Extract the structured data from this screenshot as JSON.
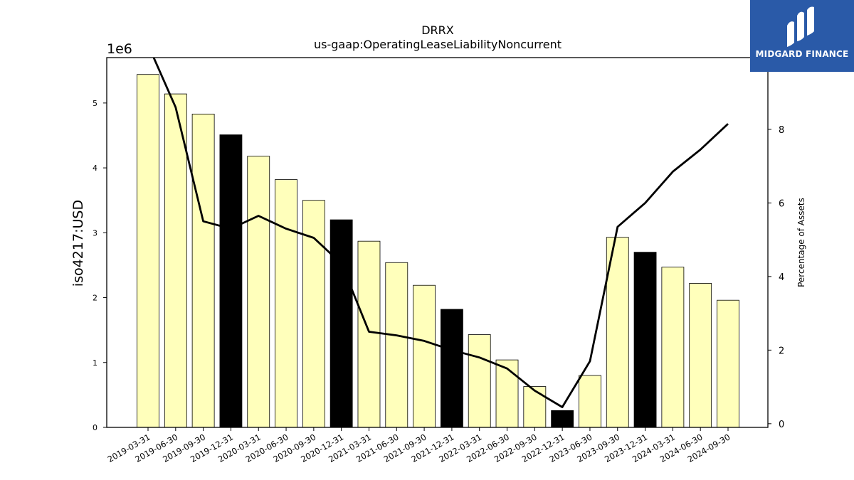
{
  "chart_data": {
    "type": "bar",
    "title": "DRRX",
    "subtitle": "us-gaap:OperatingLeaseLiabilityNoncurrent",
    "ylabel": "iso4217:USD",
    "y2label": "Percentage of Assets",
    "y_offset_label": "1e6",
    "ylim": [
      0,
      5700000
    ],
    "y2lim": [
      -0.1,
      9.95
    ],
    "yticks": [
      "0",
      "1",
      "2",
      "3",
      "4",
      "5"
    ],
    "y2ticks": [
      "0",
      "2",
      "4",
      "6",
      "8"
    ],
    "categories": [
      "2019-03-31",
      "2019-06-30",
      "2019-09-30",
      "2019-12-31",
      "2020-03-31",
      "2020-06-30",
      "2020-09-30",
      "2020-12-31",
      "2021-03-31",
      "2021-06-30",
      "2021-09-30",
      "2021-12-31",
      "2022-03-31",
      "2022-06-30",
      "2022-09-30",
      "2022-12-31",
      "2023-06-30",
      "2023-09-30",
      "2023-12-31",
      "2024-03-31",
      "2024-06-30",
      "2024-09-30"
    ],
    "series": [
      {
        "kind": "bar",
        "axis": "left",
        "values": [
          5440000,
          5140000,
          4830000,
          4510000,
          4180000,
          3820000,
          3500000,
          3200000,
          2870000,
          2540000,
          2190000,
          1820000,
          1430000,
          1040000,
          630000,
          260000,
          800000,
          2930000,
          2700000,
          2470000,
          2220000,
          1960000
        ],
        "highlight": [
          false,
          false,
          false,
          true,
          false,
          false,
          false,
          true,
          false,
          false,
          false,
          true,
          false,
          false,
          false,
          true,
          false,
          false,
          true,
          false,
          false,
          false
        ],
        "color": "#ffffbb",
        "highlight_color": "#000000"
      },
      {
        "kind": "line",
        "axis": "right",
        "values": [
          10.3,
          8.6,
          5.5,
          5.3,
          5.65,
          5.3,
          5.05,
          4.35,
          2.5,
          2.4,
          2.25,
          2.0,
          1.8,
          1.5,
          0.9,
          0.45,
          1.7,
          5.35,
          6.0,
          6.85,
          7.45,
          8.15
        ],
        "color": "#000000"
      }
    ],
    "grid": false,
    "legend": "none"
  },
  "logo": {
    "text": "MIDGARD FINANCE",
    "icon": "midgard-logo-icon",
    "color": "#2a5aa8"
  }
}
